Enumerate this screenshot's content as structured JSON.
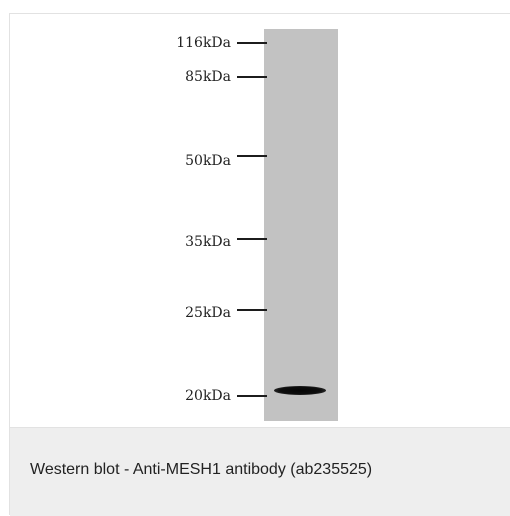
{
  "markers": [
    {
      "label": "116kDa"
    },
    {
      "label": "85kDa"
    },
    {
      "label": "50kDa"
    },
    {
      "label": "35kDa"
    },
    {
      "label": "25kDa"
    },
    {
      "label": "20kDa"
    }
  ],
  "caption": "Western blot - Anti-MESH1 antibody (ab235525)"
}
